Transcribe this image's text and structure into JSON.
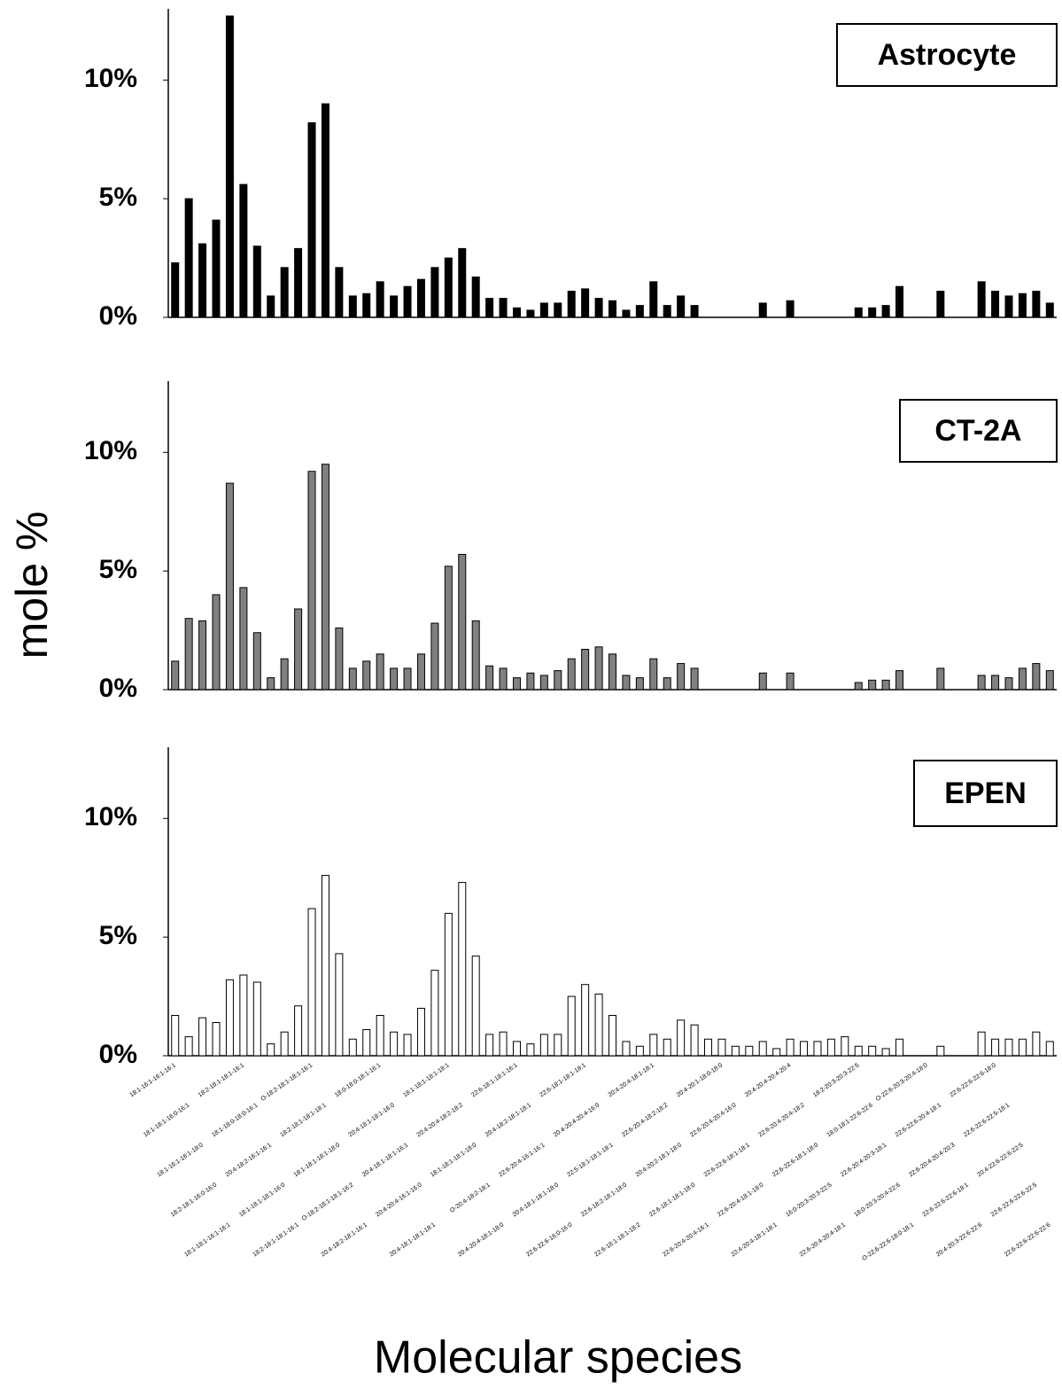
{
  "ylabel": "mole %",
  "xlabel": "Molecular species",
  "chart_data": [
    {
      "type": "bar",
      "title": "Astrocyte",
      "color": "#000000",
      "edgecolor": "#000000",
      "ylim": [
        0,
        13
      ],
      "yticks": [
        {
          "value": 0,
          "label": "0%"
        },
        {
          "value": 5,
          "label": "5%"
        },
        {
          "value": 10,
          "label": "10%"
        }
      ],
      "values": [
        2.3,
        5.0,
        3.1,
        4.1,
        12.7,
        5.6,
        3.0,
        0.9,
        2.1,
        2.9,
        8.2,
        9.0,
        2.1,
        0.9,
        1.0,
        1.5,
        0.9,
        1.3,
        1.6,
        2.1,
        2.5,
        2.9,
        1.7,
        0.8,
        0.8,
        0.4,
        0.3,
        0.6,
        0.6,
        1.1,
        1.2,
        0.8,
        0.7,
        0.3,
        0.5,
        1.5,
        0.5,
        0.9,
        0.5,
        0,
        0,
        0,
        0,
        0.6,
        0,
        0.7,
        0,
        0,
        0,
        0,
        0.4,
        0.4,
        0.5,
        1.3,
        0,
        0,
        1.1,
        0,
        0,
        1.5,
        1.1,
        0.9,
        1.0,
        1.1,
        0.6
      ]
    },
    {
      "type": "bar",
      "title": "CT-2A",
      "color": "#808080",
      "edgecolor": "#000000",
      "ylim": [
        0,
        13
      ],
      "yticks": [
        {
          "value": 0,
          "label": "0%"
        },
        {
          "value": 5,
          "label": "5%"
        },
        {
          "value": 10,
          "label": "10%"
        }
      ],
      "values": [
        1.2,
        3.0,
        2.9,
        4.0,
        8.7,
        4.3,
        2.4,
        0.5,
        1.3,
        3.4,
        9.2,
        9.5,
        2.6,
        0.9,
        1.2,
        1.5,
        0.9,
        0.9,
        1.5,
        2.8,
        5.2,
        5.7,
        2.9,
        1.0,
        0.9,
        0.5,
        0.7,
        0.6,
        0.8,
        1.3,
        1.7,
        1.8,
        1.5,
        0.6,
        0.5,
        1.3,
        0.5,
        1.1,
        0.9,
        0,
        0,
        0,
        0,
        0.7,
        0,
        0.7,
        0,
        0,
        0,
        0,
        0.3,
        0.4,
        0.4,
        0.8,
        0,
        0,
        0.9,
        0,
        0,
        0.6,
        0.6,
        0.5,
        0.9,
        1.1,
        0.8
      ]
    },
    {
      "type": "bar",
      "title": "EPEN",
      "color": "#ffffff",
      "edgecolor": "#000000",
      "ylim": [
        0,
        13
      ],
      "yticks": [
        {
          "value": 0,
          "label": "0%"
        },
        {
          "value": 5,
          "label": "5%"
        },
        {
          "value": 10,
          "label": "10%"
        }
      ],
      "values": [
        1.7,
        0.8,
        1.6,
        1.4,
        3.2,
        3.4,
        3.1,
        0.5,
        1.0,
        2.1,
        6.2,
        7.6,
        4.3,
        0.7,
        1.1,
        1.7,
        1.0,
        0.9,
        2.0,
        3.6,
        6.0,
        7.3,
        4.2,
        0.9,
        1.0,
        0.6,
        0.5,
        0.9,
        0.9,
        2.5,
        3.0,
        2.6,
        1.7,
        0.6,
        0.4,
        0.9,
        0.7,
        1.5,
        1.3,
        0.7,
        0.7,
        0.4,
        0.4,
        0.6,
        0.3,
        0.7,
        0.6,
        0.6,
        0.7,
        0.8,
        0.4,
        0.4,
        0.3,
        0.7,
        0,
        0,
        0.4,
        0,
        0,
        1.0,
        0.7,
        0.7,
        0.7,
        1.0,
        0.6
      ],
      "categories": [
        "18:1-16:1-16:1-16:1",
        "18:1-18:1-16:0-16:1",
        "18:1-16:1-16:1-18:0",
        "18:2-18:1-16:0-16:0",
        "18:1-18:1-16:1-16:1",
        "18:2-18:1-18:1-16:1",
        "18:1-18:0-18:0-16:1",
        "20:4-18:2-16:1-16:1",
        "18:1-18:1-18:1-16:0",
        "18:2-18:1-18:1-16:1",
        "O-18:2-18:1-18:1-16:1",
        "18:2-18:1-18:1-18:1",
        "18:1-18:1-18:1-18:0",
        "O-18:2-18:1-18:1-16:2",
        "20:4-18:2-18:1-16:1",
        "18:0-18:0-18:1-16:1",
        "20:4-18:1-18:1-16:0",
        "20:4-18:1-18:1-16:1",
        "20:4-20:4-16:1-16:0",
        "20:4-18:1-18:1-18:1",
        "18:1-18:1-18:1-18:1",
        "20:4-20:4-18:2-18:2",
        "18:1-18:1-18:1-18:0",
        "O-20:4-18:2-18:1",
        "20:4-20:4-18:1-18:0",
        "22:6-18:1-18:1-16:1",
        "20:4-18:2-18:1-18:1",
        "22:6-20:4-16:1-16:1",
        "20:4-18:1-18:1-18:0",
        "22:6-22:6-16:0-16:0",
        "22:6-18:1-18:1-18:1",
        "20:4-20:4-20:4-16:0",
        "22:5-18:1-18:1-18:1",
        "22:6-18:2-18:1-18:0",
        "22:6-18:1-18:1-18:2",
        "20:4-20:4-18:1-18:1",
        "22:6-20:4-18:2-18:2",
        "20:4-20:2-18:1-18:0",
        "22:6-18:1-18:1-18:0",
        "22:6-20:4-20:4-16:1",
        "20:4-20:1-18:0-18:0",
        "22:6-20:4-20:4-16:0",
        "22:6-22:6-18:1-18:1",
        "22:6-20:4-18:1-18:0",
        "22:4-20:4-18:1-18:1",
        "20:4-20:4-20:4-20:4",
        "22:6-20:4-20:4-18:2",
        "22:6-22:6-18:1-18:0",
        "16:0-20:3-20:3-22:5",
        "22:6-20:4-20:4-18:1",
        "18:2-20:3-20:3-22:5",
        "18:0-18:1-22:6-22:6",
        "22:6-20:4-20:3-18:1",
        "18:0-20:3-20:4-22:6",
        "O-22:6-22:6-18:0-18:1",
        "O-22:6-20:3-20:4-18:0",
        "22:6-22:6-20:4-18:1",
        "22:6-20:4-20:4-20:3",
        "22:6-22:6-22:6-18:1",
        "20:4-20:3-22:6-22:6",
        "22:6-22:6-22:6-18:0",
        "22:6-22:6-22:5-18:1",
        "20:4-22:6-22:6-22:5",
        "22:6-22:6-22:6-22:5",
        "22:6-22:6-22:6-22:6"
      ]
    }
  ]
}
